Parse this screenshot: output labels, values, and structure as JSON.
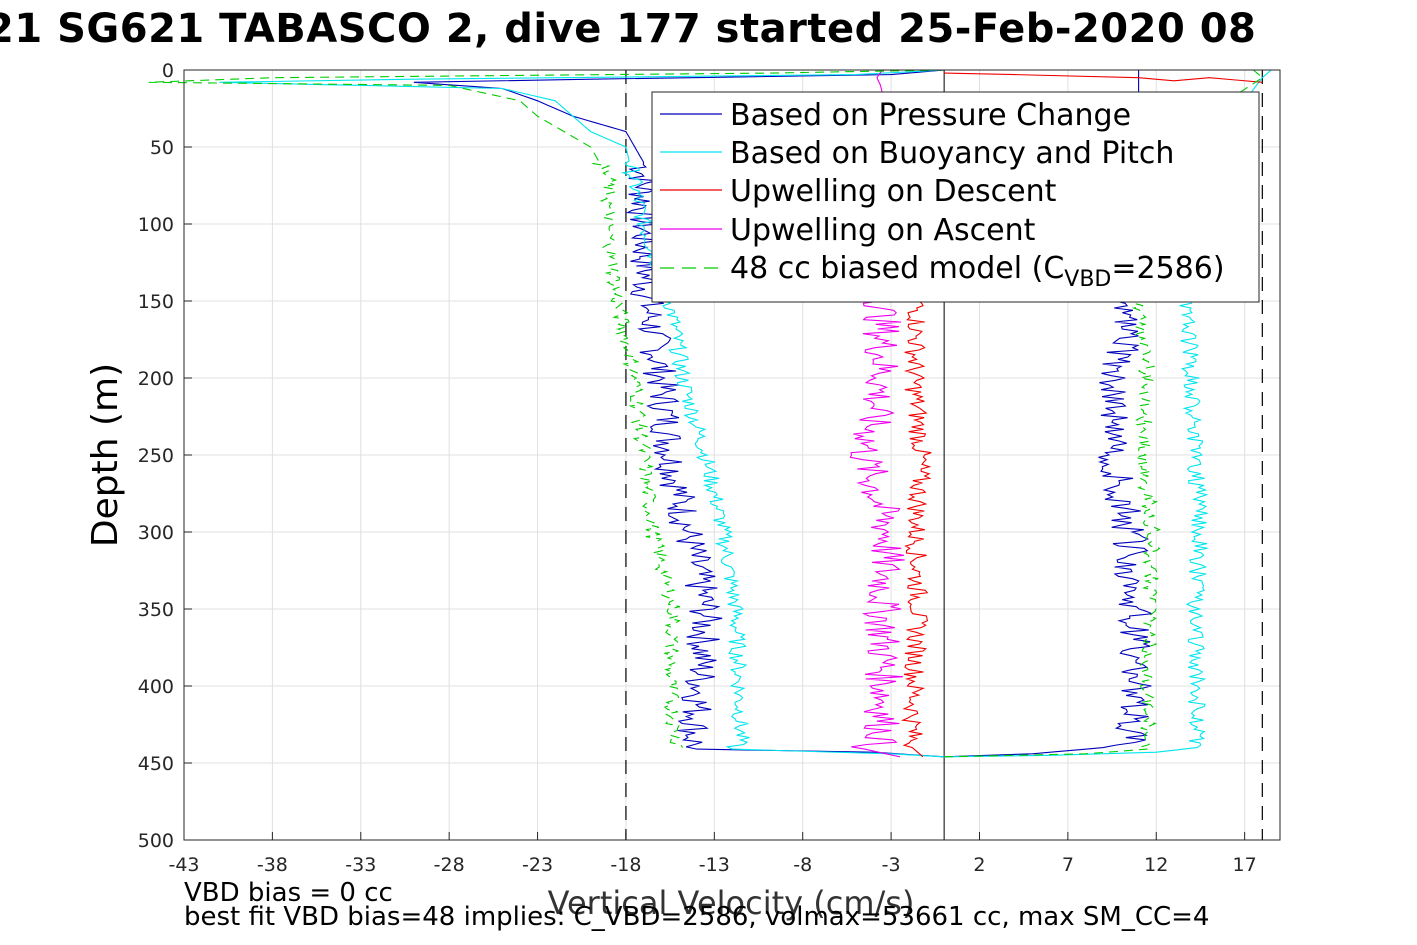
{
  "chart_data": {
    "type": "line",
    "title": "21 SG621 TABASCO 2, dive 177 started 25-Feb-2020 08",
    "xlabel": "Vertical Velocity (cm/s)",
    "ylabel": "Depth (m)",
    "xlim": [
      -43,
      19
    ],
    "ylim": [
      500,
      0
    ],
    "y_axis_reversed": true,
    "grid": true,
    "xticks": [
      -43,
      -38,
      -33,
      -28,
      -23,
      -18,
      -13,
      -8,
      -3,
      2,
      7,
      12,
      17
    ],
    "yticks": [
      0,
      50,
      100,
      150,
      200,
      250,
      300,
      350,
      400,
      450,
      500
    ],
    "xtick_labels": [
      "-43",
      "-38",
      "-33",
      "-28",
      "-23",
      "-18",
      "-13",
      "-8",
      "-3",
      "2",
      "7",
      "12",
      "17"
    ],
    "ytick_labels": [
      "0",
      "50",
      "100",
      "150",
      "200",
      "250",
      "300",
      "350",
      "400",
      "450",
      "500"
    ],
    "legend_position": "top-right",
    "legend": {
      "pressure": "Based on Pressure Change",
      "buoyancy": "Based on Buoyancy and Pitch",
      "up_descent": "Upwelling on Descent",
      "up_ascent": "Upwelling on Ascent",
      "model_prefix": "48 cc biased model (C",
      "model_sub": "VBD",
      "model_suffix": "=2586)"
    },
    "reference_lines": {
      "vertical_solid_x": 0,
      "vertical_dashed_x": [
        -18,
        18
      ]
    },
    "series": [
      {
        "key": "pressure",
        "name": "Based on Pressure Change",
        "color": "#0000bb",
        "style": "solid",
        "descent": [
          [
            0,
            0
          ],
          [
            -3,
            3
          ],
          [
            -20,
            6
          ],
          [
            -30,
            8
          ],
          [
            -25,
            12
          ],
          [
            -23,
            20
          ],
          [
            -21,
            30
          ],
          [
            -18,
            40
          ],
          [
            -17,
            60
          ],
          [
            -17,
            100
          ],
          [
            -16.8,
            150
          ],
          [
            -16,
            200
          ],
          [
            -15.5,
            250
          ],
          [
            -14.5,
            300
          ],
          [
            -13.5,
            350
          ],
          [
            -13.8,
            400
          ],
          [
            -14.2,
            435
          ],
          [
            -14,
            441
          ],
          [
            -4,
            443
          ],
          [
            0,
            446
          ]
        ],
        "ascent": [
          [
            0,
            446
          ],
          [
            5,
            444
          ],
          [
            9,
            440
          ],
          [
            10.5,
            435
          ],
          [
            10.8,
            400
          ],
          [
            10.8,
            350
          ],
          [
            10.5,
            300
          ],
          [
            9.5,
            250
          ],
          [
            9.8,
            200
          ],
          [
            10.5,
            150
          ],
          [
            10.8,
            100
          ],
          [
            11,
            50
          ],
          [
            11,
            20
          ],
          [
            11,
            5
          ],
          [
            11,
            0
          ]
        ]
      },
      {
        "key": "buoyancy",
        "name": "Based on Buoyancy and Pitch",
        "color": "#00e5ee",
        "style": "solid",
        "descent": [
          [
            0,
            0
          ],
          [
            -5,
            3
          ],
          [
            -30,
            6
          ],
          [
            -41,
            8
          ],
          [
            -25,
            12
          ],
          [
            -22,
            20
          ],
          [
            -21,
            30
          ],
          [
            -20,
            40
          ],
          [
            -18,
            50
          ],
          [
            -17,
            100
          ],
          [
            -15.5,
            150
          ],
          [
            -14.8,
            200
          ],
          [
            -13.5,
            250
          ],
          [
            -12.5,
            300
          ],
          [
            -11.8,
            350
          ],
          [
            -11.6,
            400
          ],
          [
            -11.5,
            435
          ],
          [
            -12,
            441
          ],
          [
            -3,
            444
          ],
          [
            0,
            446
          ]
        ],
        "ascent": [
          [
            0,
            446
          ],
          [
            6,
            445
          ],
          [
            12,
            443
          ],
          [
            14.3,
            440
          ],
          [
            14.3,
            400
          ],
          [
            14.2,
            350
          ],
          [
            14.5,
            300
          ],
          [
            14.2,
            250
          ],
          [
            14,
            200
          ],
          [
            13.7,
            150
          ],
          [
            15,
            100
          ],
          [
            16,
            50
          ],
          [
            17,
            20
          ],
          [
            18,
            5
          ],
          [
            18.5,
            0
          ]
        ]
      },
      {
        "key": "up_descent",
        "name": "Upwelling on Descent",
        "color": "#ee0000",
        "style": "solid",
        "descent": [
          [
            -1.5,
            150
          ],
          [
            -1.7,
            200
          ],
          [
            -1.3,
            250
          ],
          [
            -1.6,
            300
          ],
          [
            -1.5,
            350
          ],
          [
            -1.7,
            400
          ],
          [
            -1.8,
            440
          ],
          [
            -1.2,
            446
          ]
        ],
        "ascent": [
          [
            0,
            2
          ],
          [
            4,
            3
          ],
          [
            11,
            5
          ],
          [
            13,
            7
          ],
          [
            15,
            5
          ],
          [
            18,
            8
          ]
        ]
      },
      {
        "key": "up_ascent",
        "name": "Upwelling on Ascent",
        "color": "#ee00ee",
        "style": "solid",
        "descent": [
          [
            -3.5,
            150
          ],
          [
            -3.5,
            200
          ],
          [
            -4.5,
            250
          ],
          [
            -3.2,
            300
          ],
          [
            -3.5,
            350
          ],
          [
            -3.4,
            400
          ],
          [
            -3.5,
            435
          ],
          [
            -4.5,
            441
          ],
          [
            -2.5,
            446
          ]
        ],
        "ascent": [
          [
            -3.5,
            0
          ],
          [
            -3.8,
            5
          ],
          [
            -3.6,
            10
          ],
          [
            -3.5,
            15
          ]
        ]
      },
      {
        "key": "model",
        "name": "48 cc biased model (CVBD=2586)",
        "color": "#00cc00",
        "style": "dashed",
        "descent": [
          [
            0,
            0
          ],
          [
            -10,
            2
          ],
          [
            -38,
            5
          ],
          [
            -45,
            8
          ],
          [
            -28,
            10
          ],
          [
            -24,
            20
          ],
          [
            -23,
            30
          ],
          [
            -21.5,
            40
          ],
          [
            -20,
            50
          ],
          [
            -19,
            70
          ],
          [
            -19,
            100
          ],
          [
            -18.5,
            150
          ],
          [
            -17.5,
            200
          ],
          [
            -17,
            250
          ],
          [
            -16.5,
            300
          ],
          [
            -15.3,
            350
          ],
          [
            -15.5,
            400
          ],
          [
            -15.2,
            435
          ],
          [
            -14.8,
            440
          ]
        ],
        "ascent": [
          [
            0,
            446
          ],
          [
            8,
            444
          ],
          [
            11.5,
            441
          ],
          [
            11.5,
            400
          ],
          [
            11.7,
            350
          ],
          [
            11.8,
            300
          ],
          [
            11.2,
            250
          ],
          [
            11.5,
            200
          ],
          [
            11,
            150
          ],
          [
            13,
            100
          ],
          [
            15,
            50
          ],
          [
            16,
            20
          ],
          [
            18,
            5
          ],
          [
            17.5,
            0
          ]
        ]
      }
    ]
  },
  "notes": {
    "line1": "VBD bias = 0 cc",
    "line2": "best fit VBD bias=48 implies: C_VBD=2586, volmax=53661 cc, max SM_CC=4"
  }
}
